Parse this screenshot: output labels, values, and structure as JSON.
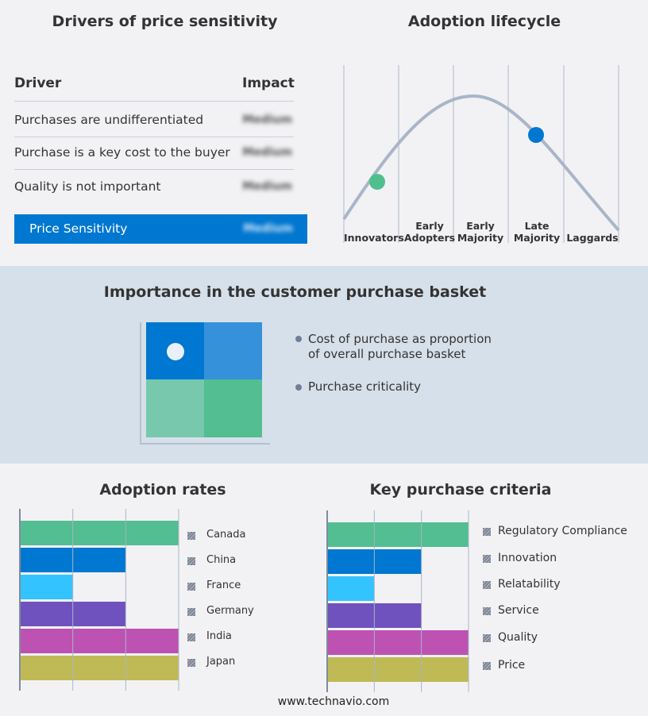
{
  "drivers": {
    "title": "Drivers of price sensitivity",
    "col_driver": "Driver",
    "col_impact": "Impact",
    "rows": [
      {
        "driver": "Purchases are undifferentiated",
        "impact": "Medium"
      },
      {
        "driver": "Purchase is a key cost to the buyer",
        "impact": "Medium"
      },
      {
        "driver": "Quality is not important",
        "impact": "Medium"
      }
    ],
    "summary": {
      "label": "Price Sensitivity",
      "impact": "Medium"
    }
  },
  "lifecycle": {
    "title": "Adoption lifecycle",
    "stages": [
      "Innovators",
      "Early Adopters",
      "Early Majority",
      "Late Majority",
      "Laggards"
    ],
    "markers": [
      {
        "stage": "Innovators",
        "color": "#4fc08d"
      },
      {
        "stage": "Late Majority",
        "color": "#0077d0"
      }
    ]
  },
  "basket": {
    "title": "Importance in the customer purchase basket",
    "bullets": [
      "Cost of purchase as proportion of overall purchase basket",
      "Purchase criticality"
    ],
    "colors": [
      "#0077d0",
      "#3592da",
      "#77c8ac",
      "#52be91"
    ]
  },
  "chart_data": [
    {
      "type": "bar",
      "orientation": "horizontal",
      "title": "Adoption rates",
      "categories": [
        "Canada",
        "China",
        "France",
        "Germany",
        "India",
        "Japan"
      ],
      "values": [
        3,
        2,
        1,
        2,
        3,
        3
      ],
      "xlim": [
        0,
        3
      ],
      "grid": true,
      "legend": "right",
      "colors": [
        "#52be91",
        "#0077d0",
        "#33c3ff",
        "#6f52bd",
        "#bd52b3",
        "#bfba56"
      ]
    },
    {
      "type": "bar",
      "orientation": "horizontal",
      "title": "Key purchase criteria",
      "categories": [
        "Regulatory Compliance",
        "Innovation",
        "Relatability",
        "Service",
        "Quality",
        "Price"
      ],
      "values": [
        3,
        2,
        1,
        2,
        3,
        3
      ],
      "xlim": [
        0,
        3
      ],
      "grid": true,
      "legend": "right",
      "colors": [
        "#52be91",
        "#0077d0",
        "#33c3ff",
        "#6f52bd",
        "#bd52b3",
        "#bfba56"
      ]
    }
  ],
  "footer": "www.technavio.com"
}
